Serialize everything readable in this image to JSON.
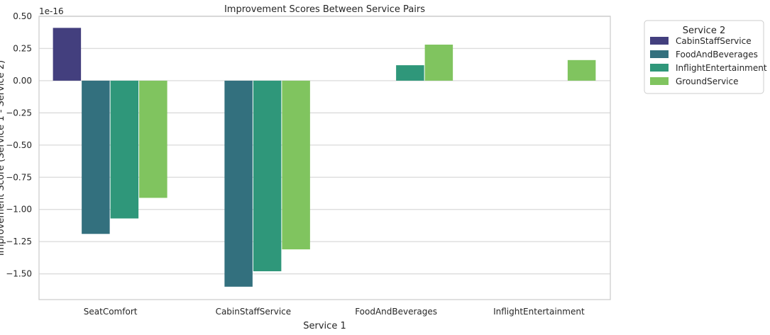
{
  "chart_data": {
    "type": "bar",
    "title": "Improvement Scores Between Service Pairs",
    "xlabel": "Service 1",
    "ylabel": "Improvement Score (Service 1 - Service 2)",
    "y_offset_text": "1e-16",
    "categories": [
      "SeatComfort",
      "CabinStaffService",
      "FoodAndBeverages",
      "InflightEntertainment"
    ],
    "yticks": [
      "0.50",
      "0.25",
      "0.00",
      "−0.25",
      "−0.50",
      "−0.75",
      "−1.00",
      "−1.25",
      "−1.50"
    ],
    "ytick_values": [
      0.5,
      0.25,
      0.0,
      -0.25,
      -0.5,
      -0.75,
      -1.0,
      -1.25,
      -1.5
    ],
    "ylim": [
      -1.7,
      0.5
    ],
    "grid": true,
    "legend": {
      "title": "Service 2",
      "placement": "outside-top-right"
    },
    "series": [
      {
        "name": "CabinStaffService",
        "color": "#433f7e",
        "values": [
          0.41,
          null,
          null,
          null
        ]
      },
      {
        "name": "FoodAndBeverages",
        "color": "#33707e",
        "values": [
          -1.19,
          -1.6,
          null,
          null
        ]
      },
      {
        "name": "InflightEntertainment",
        "color": "#2f977a",
        "values": [
          -1.07,
          -1.48,
          0.12,
          null
        ]
      },
      {
        "name": "GroundService",
        "color": "#80c45f",
        "values": [
          -0.91,
          -1.31,
          0.28,
          0.16
        ]
      }
    ]
  }
}
